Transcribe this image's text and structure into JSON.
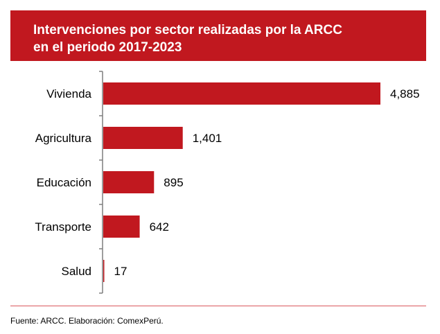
{
  "chart_data": {
    "type": "bar",
    "orientation": "horizontal",
    "title": "Intervenciones por sector realizadas por la ARCC\nen el periodo 2017-2023",
    "categories": [
      "Vivienda",
      "Agricultura",
      "Educación",
      "Transporte",
      "Salud"
    ],
    "values": [
      4885,
      1401,
      895,
      642,
      17
    ],
    "value_labels": [
      "4,885",
      "1,401",
      "895",
      "642",
      "17"
    ],
    "xlim": [
      0,
      4885
    ],
    "grid": false,
    "legend": "none",
    "bar_color": "#c1181f",
    "axis_color": "#7f7f7f"
  },
  "header": {
    "background": "#c1181f"
  },
  "footer": {
    "source": "Fuente: ARCC. Elaboración: ComexPerú.",
    "rule_color": "#d9575c"
  }
}
